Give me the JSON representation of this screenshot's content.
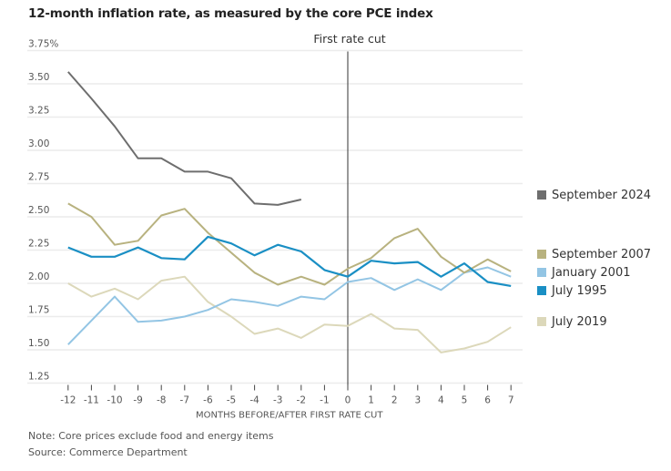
{
  "chart_data": {
    "type": "line",
    "title": "12-month inflation rate, as measured by the core PCE index",
    "xlabel": "MONTHS BEFORE/AFTER FIRST RATE CUT",
    "ylabel": "",
    "x": [
      -12,
      -11,
      -10,
      -9,
      -8,
      -7,
      -6,
      -5,
      -4,
      -3,
      -2,
      -1,
      0,
      1,
      2,
      3,
      4,
      5,
      6,
      7
    ],
    "xlim": [
      -12,
      7
    ],
    "ylim": [
      1.25,
      3.75
    ],
    "yticks": [
      1.25,
      1.5,
      1.75,
      2.0,
      2.25,
      2.5,
      2.75,
      3.0,
      3.25,
      3.5,
      3.75
    ],
    "ytick_labels": [
      "1.25",
      "1.50",
      "1.75",
      "2.00",
      "2.25",
      "2.50",
      "2.75",
      "3.00",
      "3.25",
      "3.50",
      "3.75%"
    ],
    "xtick_labels": [
      "-12",
      "-11",
      "-10",
      "-9",
      "-8",
      "-7",
      "-6",
      "-5",
      "-4",
      "-3",
      "-2",
      "-1",
      "0",
      "1",
      "2",
      "3",
      "4",
      "5",
      "6",
      "7"
    ],
    "grid": "horizontal",
    "legend_placement": "right",
    "annotations": [
      {
        "x": 0,
        "text": "First rate cut",
        "kind": "vertical-line"
      }
    ],
    "series": [
      {
        "name": "September 2024",
        "color": "#6e6e6e",
        "values": [
          3.59,
          3.39,
          3.18,
          2.94,
          2.94,
          2.84,
          2.84,
          2.79,
          2.6,
          2.59,
          2.63,
          null,
          null,
          null,
          null,
          null,
          null,
          null,
          null,
          null
        ]
      },
      {
        "name": "September 2007",
        "color": "#b8b27f",
        "values": [
          2.6,
          2.5,
          2.29,
          2.32,
          2.51,
          2.56,
          2.38,
          2.23,
          2.08,
          1.99,
          2.05,
          1.99,
          2.11,
          2.19,
          2.34,
          2.41,
          2.2,
          2.08,
          2.18,
          2.09
        ]
      },
      {
        "name": "January 2001",
        "color": "#93c5e4",
        "values": [
          1.54,
          1.72,
          1.9,
          1.71,
          1.72,
          1.75,
          1.8,
          1.88,
          1.86,
          1.83,
          1.9,
          1.88,
          2.01,
          2.04,
          1.95,
          2.03,
          1.95,
          2.08,
          2.12,
          2.05
        ]
      },
      {
        "name": "July 1995",
        "color": "#1a8fc4",
        "values": [
          2.27,
          2.2,
          2.2,
          2.27,
          2.19,
          2.18,
          2.35,
          2.3,
          2.21,
          2.29,
          2.24,
          2.1,
          2.05,
          2.17,
          2.15,
          2.16,
          2.05,
          2.15,
          2.01,
          1.98
        ]
      },
      {
        "name": "July 2019",
        "color": "#dcd8ba",
        "values": [
          2.0,
          1.9,
          1.96,
          1.88,
          2.02,
          2.05,
          1.86,
          1.75,
          1.62,
          1.66,
          1.59,
          1.69,
          1.68,
          1.77,
          1.66,
          1.65,
          1.48,
          1.51,
          1.56,
          1.67
        ]
      }
    ],
    "legend": [
      {
        "name": "September 2024",
        "color": "#6e6e6e"
      },
      {
        "name": "September 2007",
        "color": "#b8b27f"
      },
      {
        "name": "January 2001",
        "color": "#93c5e4"
      },
      {
        "name": "July 1995",
        "color": "#1a8fc4"
      },
      {
        "name": "July 2019",
        "color": "#dcd8ba"
      }
    ]
  },
  "footer": {
    "note": "Note: Core prices exclude food and energy items",
    "source": "Source: Commerce Department"
  }
}
